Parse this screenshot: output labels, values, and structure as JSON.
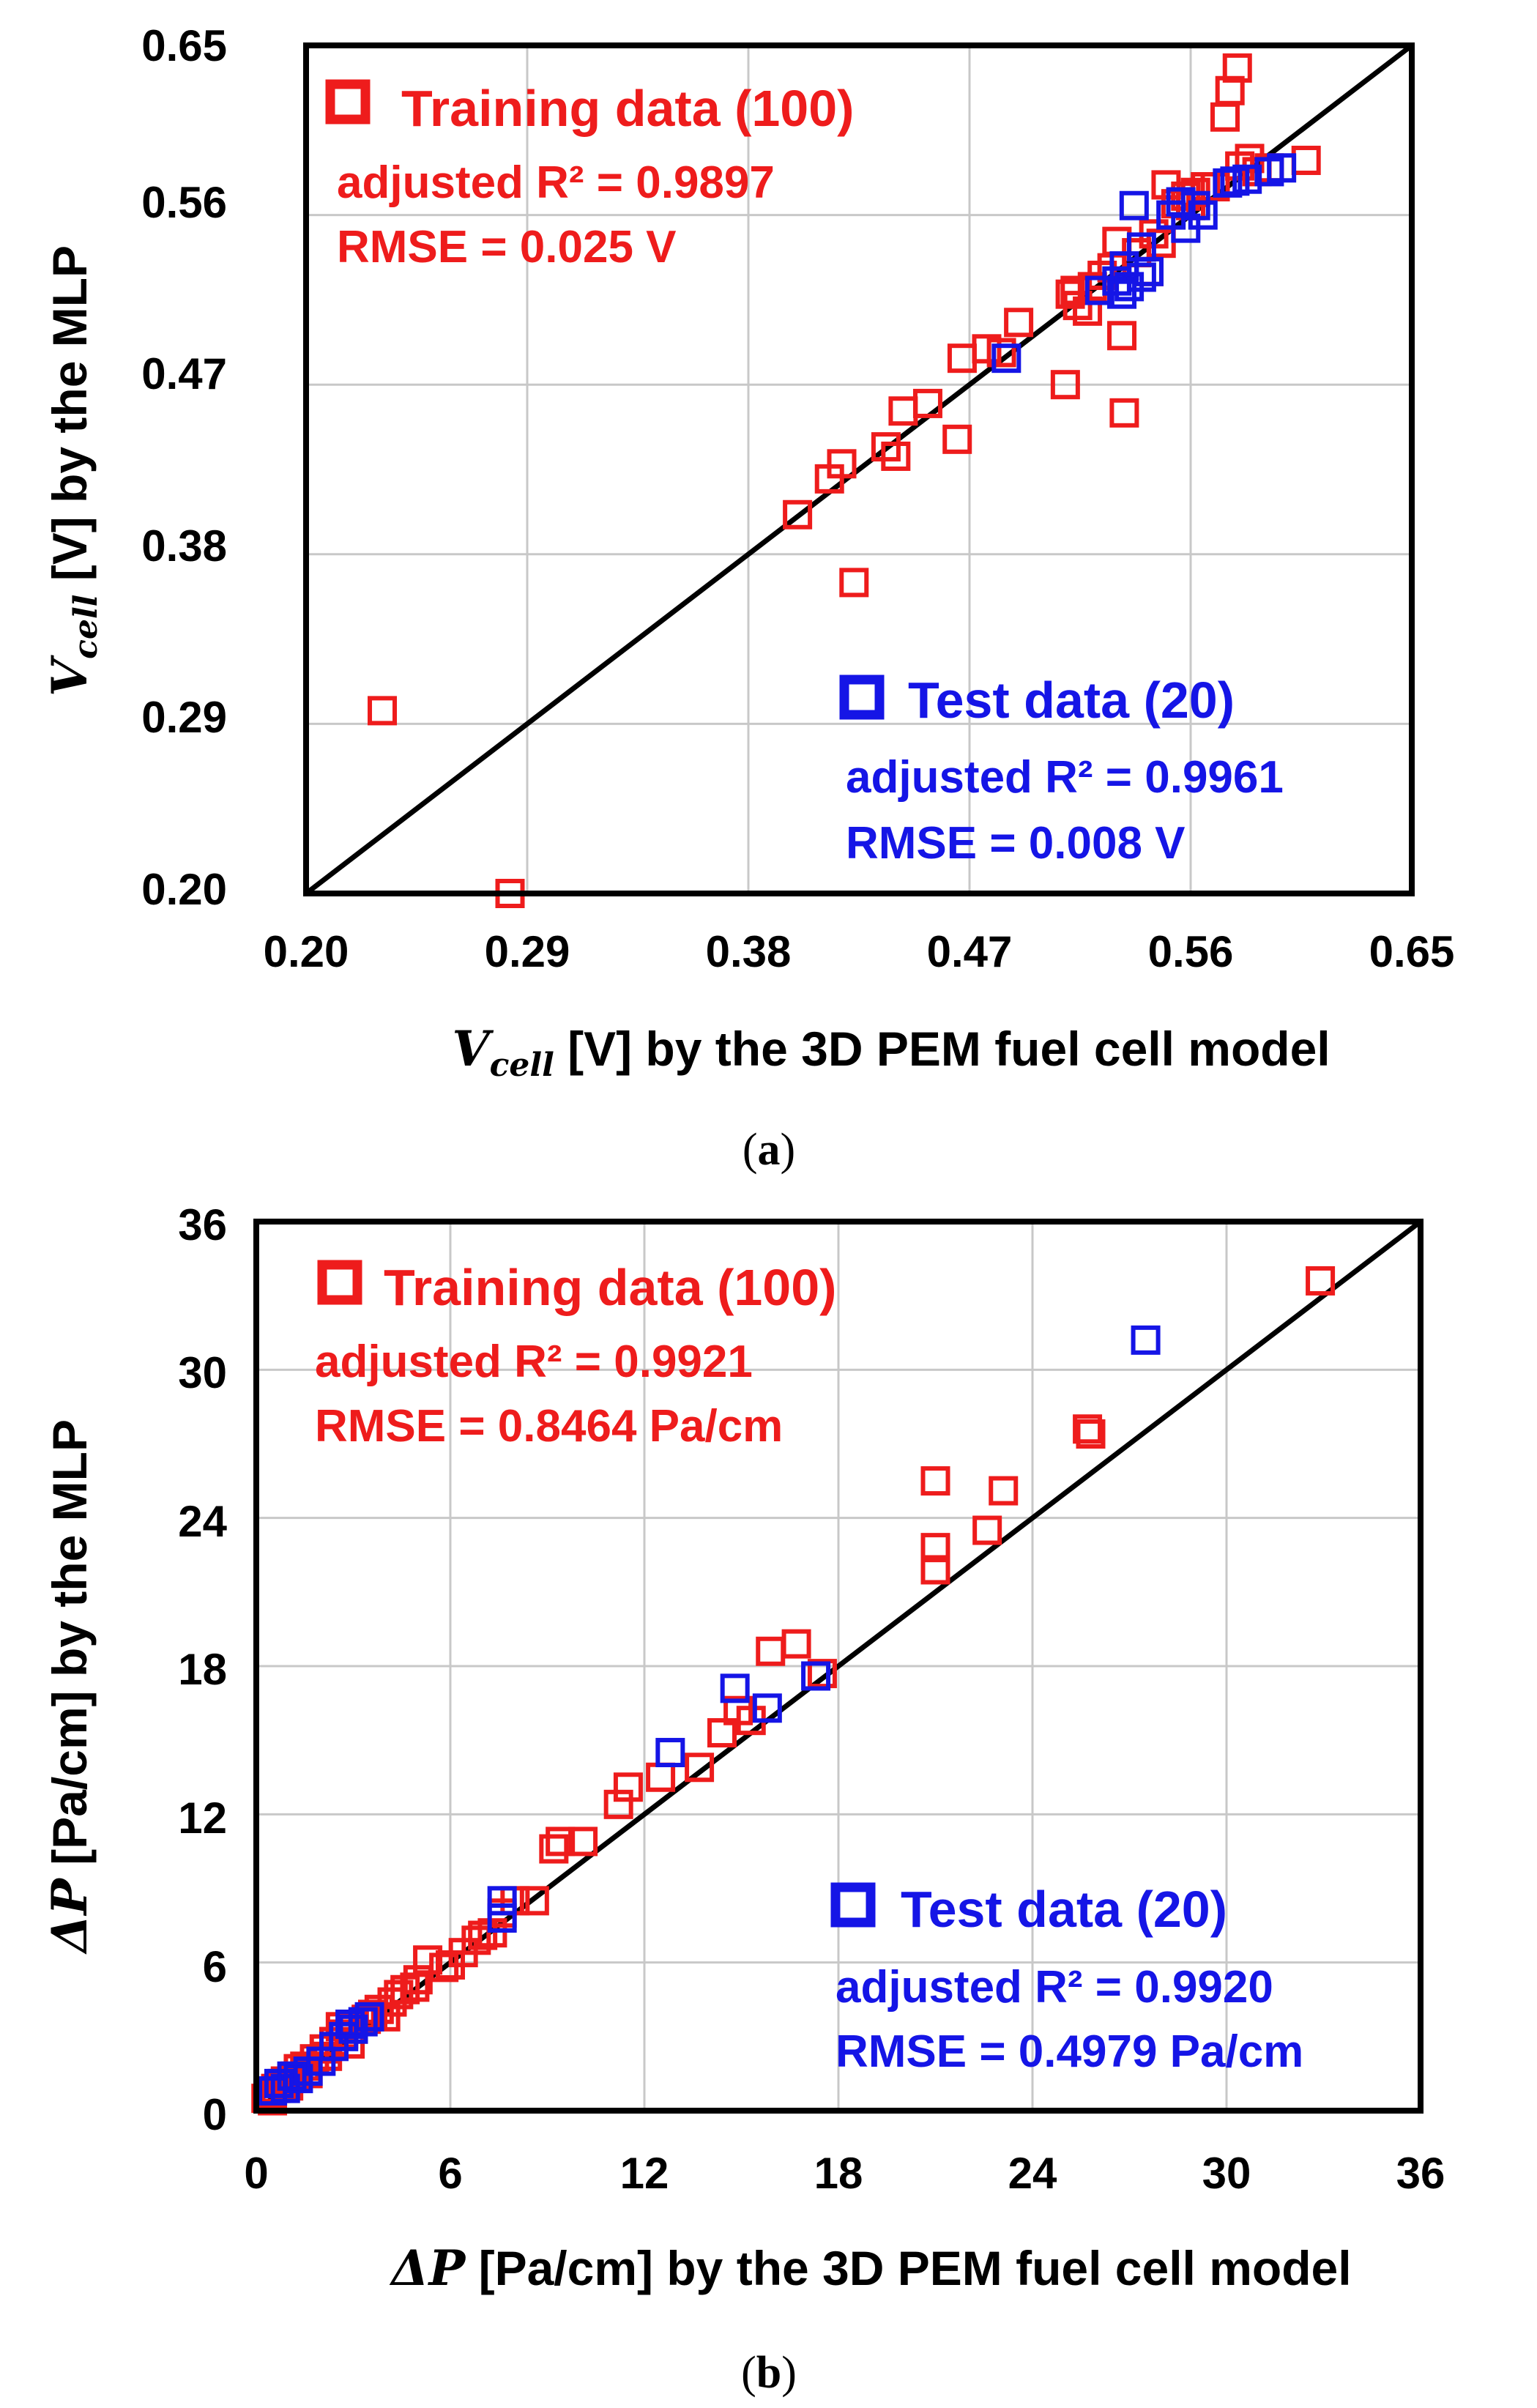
{
  "colors": {
    "training": "#ee1c1c",
    "test": "#1515e6",
    "axis": "#000000",
    "grid": "#c8c8c8"
  },
  "chart_data": [
    {
      "id": "a",
      "type": "scatter",
      "caption_letter": "a",
      "xlim": [
        0.2,
        0.65
      ],
      "ylim": [
        0.2,
        0.65
      ],
      "xticks": [
        "0.20",
        "0.29",
        "0.38",
        "0.47",
        "0.56",
        "0.65"
      ],
      "yticks": [
        "0.20",
        "0.29",
        "0.38",
        "0.47",
        "0.56",
        "0.65"
      ],
      "xlabel": {
        "symbol": "V",
        "sub": "cell",
        "text": " [V] by the 3D PEM fuel cell model"
      },
      "ylabel": {
        "symbol": "V",
        "sub": "cell",
        "text": " [V] by the MLP"
      },
      "reference_line": "y = x",
      "grid": true,
      "legend_training": {
        "label": "Training data (100)",
        "r2_label": "adjusted R² = 0.9897",
        "rmse_label": "RMSE = 0.025 V"
      },
      "legend_test": {
        "label": "Test data (20)",
        "r2_label": "adjusted R² = 0.9961",
        "rmse_label": "RMSE = 0.008 V"
      },
      "series": [
        {
          "name": "Training data (100)",
          "color_key": "training",
          "points": [
            [
              0.231,
              0.297
            ],
            [
              0.283,
              0.2
            ],
            [
              0.4,
              0.401
            ],
            [
              0.413,
              0.42
            ],
            [
              0.418,
              0.428
            ],
            [
              0.423,
              0.365
            ],
            [
              0.436,
              0.437
            ],
            [
              0.44,
              0.432
            ],
            [
              0.443,
              0.456
            ],
            [
              0.453,
              0.46
            ],
            [
              0.465,
              0.441
            ],
            [
              0.467,
              0.484
            ],
            [
              0.477,
              0.489
            ],
            [
              0.483,
              0.487
            ],
            [
              0.49,
              0.503
            ],
            [
              0.509,
              0.47
            ],
            [
              0.511,
              0.518
            ],
            [
              0.514,
              0.512
            ],
            [
              0.518,
              0.509
            ],
            [
              0.52,
              0.522
            ],
            [
              0.524,
              0.528
            ],
            [
              0.528,
              0.532
            ],
            [
              0.53,
              0.546
            ],
            [
              0.532,
              0.496
            ],
            [
              0.533,
              0.455
            ],
            [
              0.538,
              0.54
            ],
            [
              0.543,
              0.53
            ],
            [
              0.548,
              0.545
            ],
            [
              0.55,
              0.576
            ],
            [
              0.554,
              0.566
            ],
            [
              0.558,
              0.57
            ],
            [
              0.562,
              0.572
            ],
            [
              0.566,
              0.575
            ],
            [
              0.57,
              0.575
            ],
            [
              0.574,
              0.612
            ],
            [
              0.576,
              0.626
            ],
            [
              0.579,
              0.638
            ],
            [
              0.58,
              0.586
            ],
            [
              0.584,
              0.59
            ],
            [
              0.607,
              0.589
            ],
            [
              0.513,
              0.52
            ],
            [
              0.545,
              0.55
            ],
            [
              0.56,
              0.565
            ],
            [
              0.587,
              0.583
            ],
            [
              0.592,
              0.585
            ]
          ]
        },
        {
          "name": "Test data (20)",
          "color_key": "test",
          "points": [
            [
              0.485,
              0.484
            ],
            [
              0.523,
              0.52
            ],
            [
              0.532,
              0.518
            ],
            [
              0.533,
              0.533
            ],
            [
              0.537,
              0.565
            ],
            [
              0.54,
              0.543
            ],
            [
              0.543,
              0.53
            ],
            [
              0.556,
              0.567
            ],
            [
              0.558,
              0.553
            ],
            [
              0.562,
              0.565
            ],
            [
              0.575,
              0.577
            ],
            [
              0.583,
              0.579
            ],
            [
              0.592,
              0.583
            ],
            [
              0.597,
              0.585
            ],
            [
              0.53,
              0.525
            ],
            [
              0.54,
              0.527
            ],
            [
              0.552,
              0.56
            ],
            [
              0.578,
              0.578
            ],
            [
              0.565,
              0.56
            ],
            [
              0.535,
              0.522
            ]
          ]
        }
      ]
    },
    {
      "id": "b",
      "type": "scatter",
      "caption_letter": "b",
      "xlim": [
        0,
        36
      ],
      "ylim": [
        0,
        36
      ],
      "xticks": [
        "0",
        "6",
        "12",
        "18",
        "24",
        "30",
        "36"
      ],
      "yticks": [
        "0",
        "6",
        "12",
        "18",
        "24",
        "30",
        "36"
      ],
      "xlabel": {
        "symbol": "ΔP",
        "sub": "",
        "text": " [Pa/cm] by the 3D PEM fuel cell model"
      },
      "ylabel": {
        "symbol": "ΔP",
        "sub": "",
        "text": " [Pa/cm] by the MLP"
      },
      "reference_line": "y = x",
      "grid": true,
      "legend_training": {
        "label": "Training data (100)",
        "r2_label": "adjusted R² = 0.9921",
        "rmse_label": "RMSE = 0.8464 Pa/cm"
      },
      "legend_test": {
        "label": "Test data (20)",
        "r2_label": "adjusted R² = 0.9920",
        "rmse_label": "RMSE = 0.4979 Pa/cm"
      },
      "series": [
        {
          "name": "Training data (100)",
          "color_key": "training",
          "points": [
            [
              0.3,
              0.5
            ],
            [
              0.6,
              0.9
            ],
            [
              0.9,
              1.2
            ],
            [
              1.2,
              1.4
            ],
            [
              1.5,
              1.8
            ],
            [
              1.8,
              2.1
            ],
            [
              2.1,
              2.5
            ],
            [
              2.4,
              2.8
            ],
            [
              2.7,
              3.1
            ],
            [
              3.0,
              3.3
            ],
            [
              3.4,
              3.7
            ],
            [
              3.8,
              4.1
            ],
            [
              4.2,
              4.4
            ],
            [
              4.6,
              4.9
            ],
            [
              5.0,
              5.3
            ],
            [
              5.3,
              6.1
            ],
            [
              5.8,
              5.8
            ],
            [
              6.4,
              6.4
            ],
            [
              7.0,
              7.1
            ],
            [
              7.6,
              8.0
            ],
            [
              8.0,
              8.5
            ],
            [
              8.6,
              8.5
            ],
            [
              9.2,
              10.6
            ],
            [
              9.4,
              10.9
            ],
            [
              10.1,
              10.9
            ],
            [
              11.2,
              12.4
            ],
            [
              11.5,
              13.1
            ],
            [
              12.5,
              13.5
            ],
            [
              13.7,
              13.9
            ],
            [
              14.4,
              15.3
            ],
            [
              14.9,
              16.2
            ],
            [
              15.3,
              15.8
            ],
            [
              15.9,
              18.6
            ],
            [
              16.7,
              18.9
            ],
            [
              17.5,
              17.7
            ],
            [
              21.0,
              25.5
            ],
            [
              21.0,
              22.8
            ],
            [
              21.0,
              21.9
            ],
            [
              22.6,
              23.5
            ],
            [
              23.1,
              25.1
            ],
            [
              25.7,
              27.6
            ],
            [
              25.8,
              27.4
            ],
            [
              32.9,
              33.6
            ],
            [
              0.4,
              0.7
            ],
            [
              1.0,
              1.0
            ],
            [
              1.6,
              1.5
            ],
            [
              2.2,
              2.2
            ],
            [
              2.9,
              2.7
            ],
            [
              3.6,
              3.9
            ],
            [
              4.4,
              4.7
            ],
            [
              4.9,
              5.0
            ],
            [
              6.0,
              5.9
            ],
            [
              6.8,
              6.9
            ],
            [
              7.3,
              7.2
            ],
            [
              0.5,
              0.4
            ],
            [
              0.8,
              1.1
            ],
            [
              1.3,
              1.7
            ],
            [
              2.6,
              3.4
            ],
            [
              4.0,
              3.8
            ]
          ]
        },
        {
          "name": "Test data (20)",
          "color_key": "test",
          "points": [
            [
              0.5,
              0.8
            ],
            [
              0.7,
              1.1
            ],
            [
              0.9,
              0.9
            ],
            [
              1.3,
              1.3
            ],
            [
              1.6,
              1.6
            ],
            [
              2.0,
              2.0
            ],
            [
              2.4,
              2.6
            ],
            [
              2.7,
              3.0
            ],
            [
              3.0,
              3.3
            ],
            [
              3.3,
              3.6
            ],
            [
              3.5,
              3.8
            ],
            [
              7.6,
              7.8
            ],
            [
              7.6,
              8.5
            ],
            [
              12.8,
              14.5
            ],
            [
              14.8,
              17.1
            ],
            [
              15.8,
              16.3
            ],
            [
              17.3,
              17.6
            ],
            [
              27.5,
              31.2
            ],
            [
              1.1,
              1.4
            ],
            [
              2.9,
              3.5
            ]
          ]
        }
      ]
    }
  ]
}
